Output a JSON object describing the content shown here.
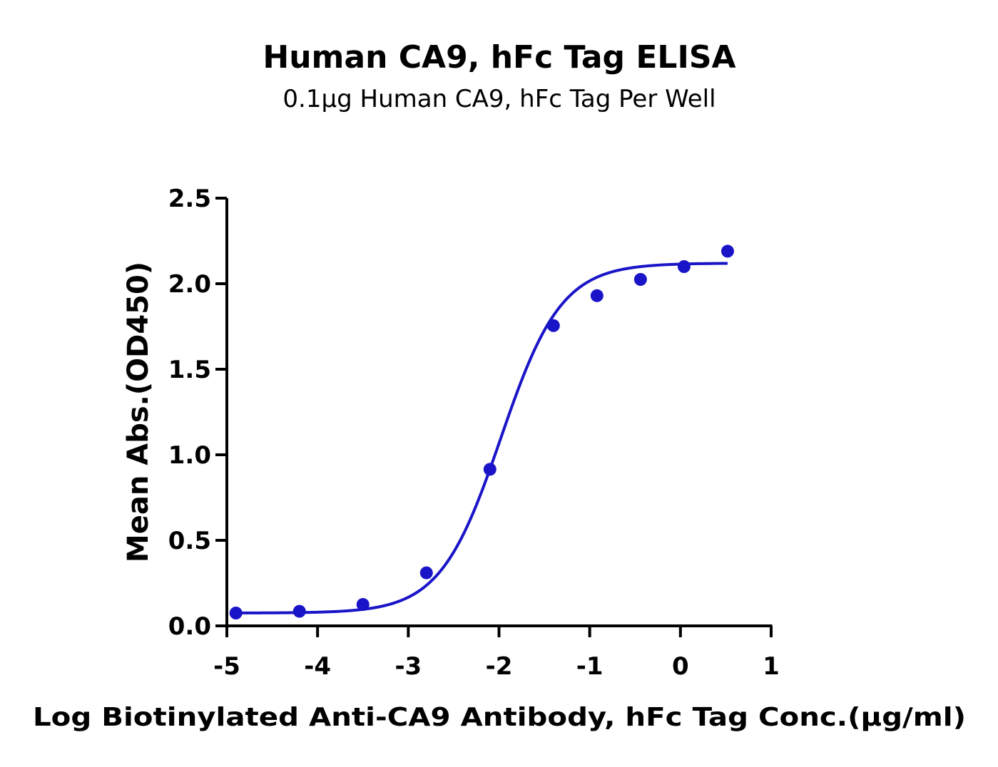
{
  "chart_data": {
    "type": "scatter",
    "title": "Human CA9, hFc Tag ELISA",
    "subtitle": "0.1μg Human CA9, hFc Tag Per Well",
    "xlabel": "Log Biotinylated Anti-CA9 Antibody, hFc Tag Conc.(μg/ml)",
    "ylabel": "Mean Abs.(OD450)",
    "xlim": [
      -5,
      1
    ],
    "ylim": [
      0,
      2.5
    ],
    "x_ticks": [
      -5,
      -4,
      -3,
      -2,
      -1,
      0,
      1
    ],
    "x_tick_labels": [
      "-5",
      "-4",
      "-3",
      "-2",
      "-1",
      "0",
      "1"
    ],
    "y_ticks": [
      0,
      0.5,
      1,
      1.5,
      2,
      2.5
    ],
    "y_tick_labels": [
      "0.0",
      "0.5",
      "1.0",
      "1.5",
      "2.0",
      "2.5"
    ],
    "grid": false,
    "legend": "none",
    "series": [
      {
        "x": [
          -4.9,
          -4.2,
          -3.5,
          -2.8,
          -2.1,
          -1.4,
          -0.92,
          -0.44,
          0.04,
          0.52
        ],
        "y": [
          0.075,
          0.085,
          0.125,
          0.31,
          0.915,
          1.755,
          1.93,
          2.025,
          2.1,
          2.19
        ],
        "color": "#1a14c8",
        "fit": {
          "model": "4PL",
          "bottom": 0.075,
          "top": 2.12,
          "log_ec50": -1.98,
          "hill_slope": 1.3,
          "x_range": [
            -4.9,
            0.52
          ]
        }
      }
    ]
  }
}
